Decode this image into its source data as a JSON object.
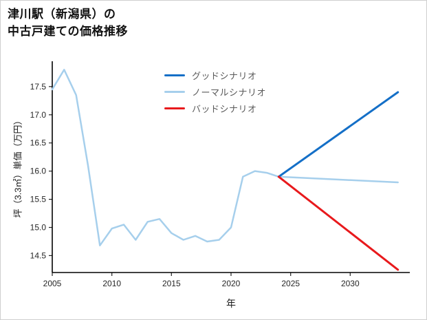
{
  "page": {
    "title_line1": "津川駅（新潟県）の",
    "title_line2": "中古戸建ての価格推移"
  },
  "chart_data": {
    "type": "line",
    "title": "津川駅（新潟県）の中古戸建ての価格推移",
    "xlabel": "年",
    "ylabel": "坪（3.3㎡）単価（万円）",
    "xlim": [
      2005,
      2035
    ],
    "ylim": [
      14.2,
      17.95
    ],
    "xticks": [
      2005,
      2010,
      2015,
      2020,
      2025,
      2030
    ],
    "yticks": [
      14.5,
      15.0,
      15.5,
      16.0,
      16.5,
      17.0,
      17.5
    ],
    "grid": false,
    "legend_position": "upper center inside plot",
    "series": [
      {
        "name": "グッドシナリオ",
        "color": "#146fc7",
        "width": 3,
        "x": [
          2024,
          2034
        ],
        "y": [
          15.9,
          17.4
        ]
      },
      {
        "name": "ノーマルシナリオ",
        "color": "#a6cfec",
        "width": 2.5,
        "x": [
          2005,
          2006,
          2007,
          2008,
          2009,
          2010,
          2011,
          2012,
          2013,
          2014,
          2015,
          2016,
          2017,
          2018,
          2019,
          2020,
          2021,
          2022,
          2023,
          2024,
          2034
        ],
        "y": [
          17.45,
          17.8,
          17.35,
          16.1,
          14.68,
          14.98,
          15.05,
          14.78,
          15.1,
          15.15,
          14.9,
          14.78,
          14.85,
          14.75,
          14.78,
          15.0,
          15.9,
          16.0,
          15.97,
          15.9,
          15.8
        ]
      },
      {
        "name": "バッドシナリオ",
        "color": "#e8191c",
        "width": 3,
        "x": [
          2024,
          2034
        ],
        "y": [
          15.9,
          14.25
        ]
      }
    ]
  }
}
